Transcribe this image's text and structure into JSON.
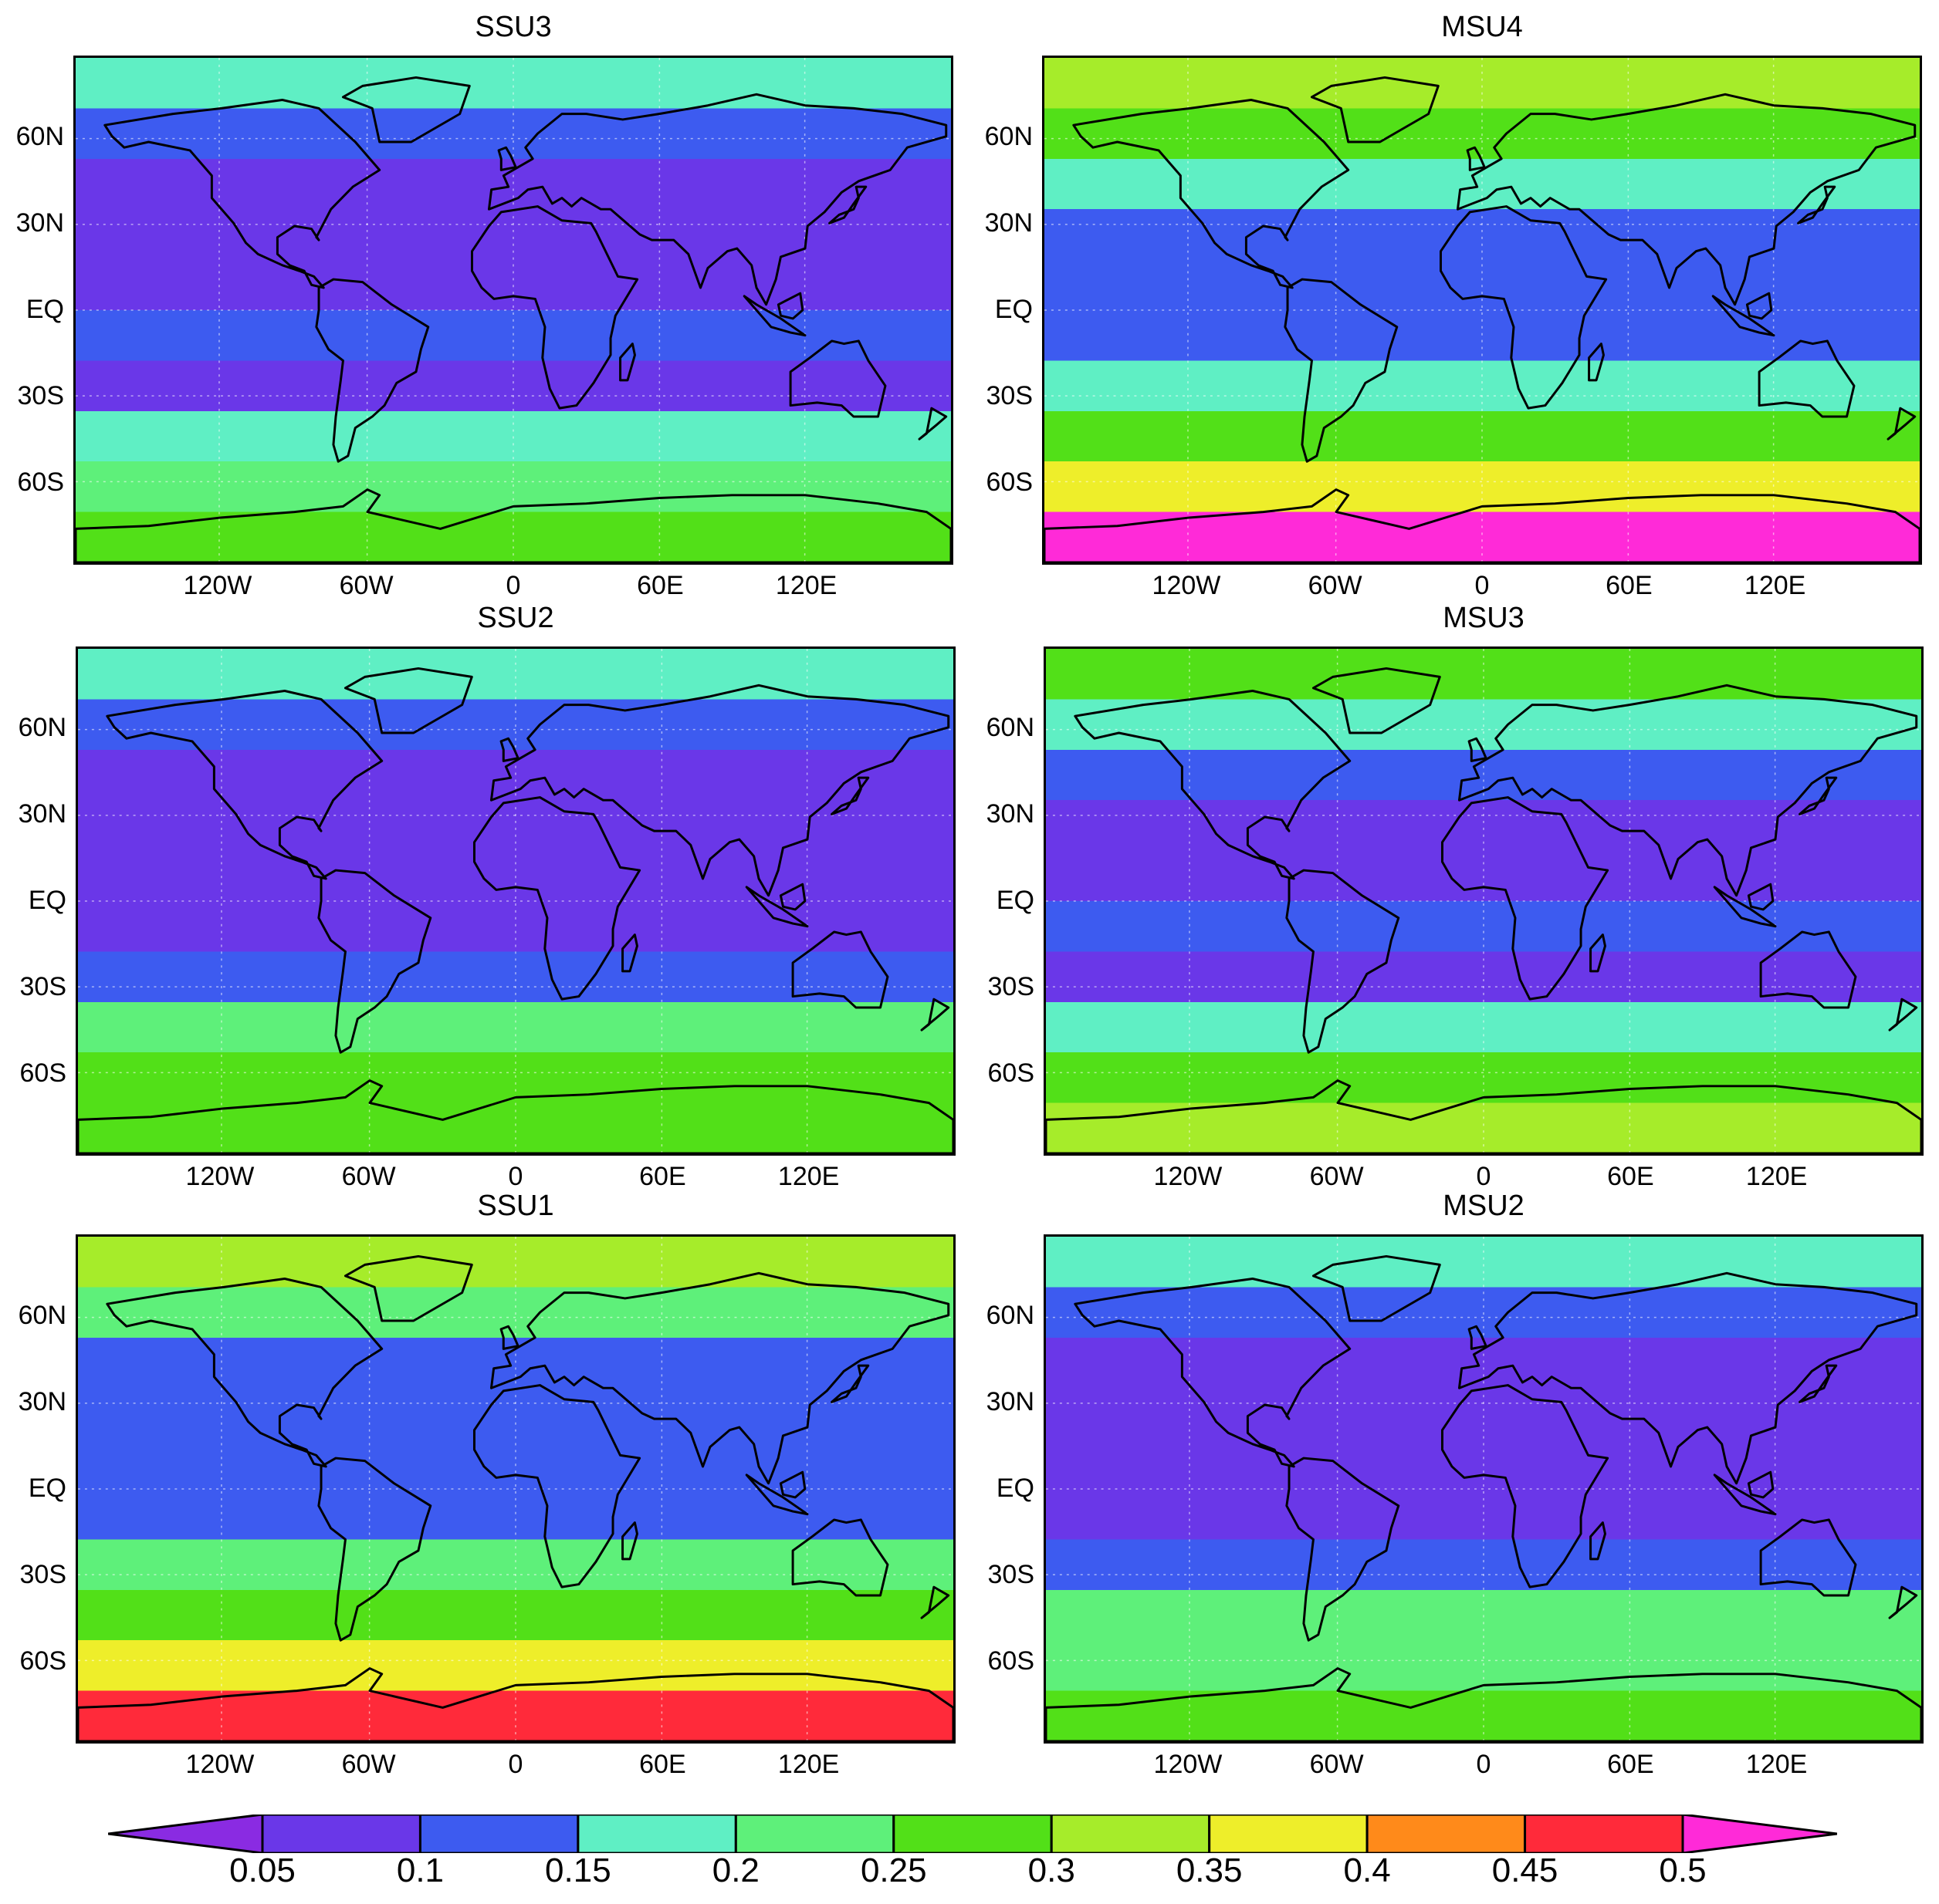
{
  "palette": [
    "#8a2be2",
    "#6a37e8",
    "#3d5bf0",
    "#5fefc4",
    "#5ef07a",
    "#52e018",
    "#a6ec2a",
    "#eeee2a",
    "#ff8a1a",
    "#ff2a3a",
    "#ff2ad8"
  ],
  "colorbar": {
    "levels": [
      "0.05",
      "0.1",
      "0.15",
      "0.2",
      "0.25",
      "0.3",
      "0.35",
      "0.4",
      "0.45",
      "0.5"
    ]
  },
  "axes": {
    "lat_labels": [
      "60N",
      "30N",
      "EQ",
      "30S",
      "60S"
    ],
    "lon_labels": [
      "120W",
      "60W",
      "0",
      "60E",
      "120E"
    ]
  },
  "panels": [
    {
      "title": "SSU3",
      "bands": [
        3,
        2,
        1,
        1,
        1,
        2,
        1,
        3,
        4,
        5
      ]
    },
    {
      "title": "MSU4",
      "bands": [
        6,
        5,
        3,
        2,
        2,
        2,
        3,
        5,
        7,
        10
      ]
    },
    {
      "title": "SSU2",
      "bands": [
        3,
        2,
        1,
        1,
        1,
        1,
        2,
        4,
        5,
        5
      ]
    },
    {
      "title": "MSU3",
      "bands": [
        5,
        3,
        2,
        1,
        1,
        2,
        1,
        3,
        5,
        6
      ]
    },
    {
      "title": "SSU1",
      "bands": [
        6,
        4,
        2,
        2,
        2,
        2,
        4,
        5,
        7,
        9
      ]
    },
    {
      "title": "MSU2",
      "bands": [
        3,
        2,
        1,
        1,
        1,
        1,
        2,
        4,
        4,
        5
      ]
    }
  ]
}
